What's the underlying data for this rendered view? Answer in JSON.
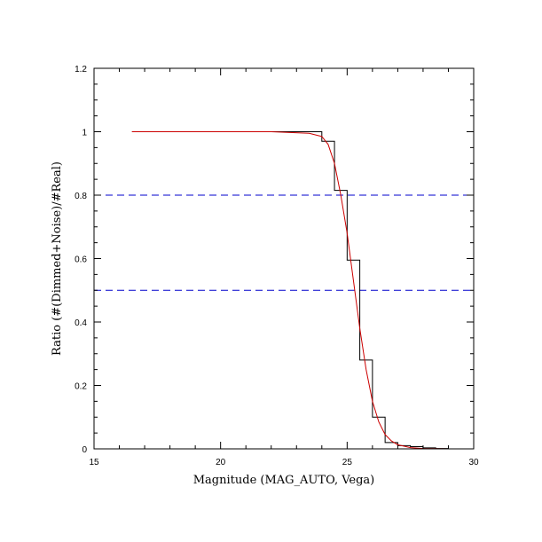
{
  "chart_data": {
    "type": "line",
    "title": "",
    "xlabel": "Magnitude (MAG_AUTO, Vega)",
    "ylabel": "Ratio (#(Dimmed+Noise)/#Real)",
    "xlim": [
      15,
      30
    ],
    "ylim": [
      0,
      1.2
    ],
    "x_ticks": [
      15,
      20,
      25,
      30
    ],
    "y_ticks": [
      0,
      0.2,
      0.4,
      0.6,
      0.8,
      1,
      1.2
    ],
    "x_tick_labels": [
      "15",
      "20",
      "25",
      "30"
    ],
    "y_tick_labels": [
      "0",
      "0.2",
      "0.4",
      "0.6",
      "0.8",
      "1",
      "1.2"
    ],
    "x_minor_step": 1,
    "y_minor_step": 0.05,
    "grid": false,
    "reference_lines": [
      {
        "y": 0.8,
        "color": "#0000cc",
        "style": "dashed"
      },
      {
        "y": 0.5,
        "color": "#0000cc",
        "style": "dashed"
      }
    ],
    "series": [
      {
        "kind": "step",
        "color": "#000000",
        "x": [
          16.5,
          24.0,
          24.0,
          24.5,
          24.5,
          25.0,
          25.0,
          25.5,
          25.5,
          26.0,
          26.0,
          26.5,
          26.5,
          27.0,
          27.0,
          27.5,
          27.5,
          28.0,
          28.0,
          28.5,
          28.5,
          29.0,
          29.0,
          29.5,
          29.5,
          30.0
        ],
        "y": [
          1.0,
          1.0,
          0.97,
          0.97,
          0.815,
          0.815,
          0.595,
          0.595,
          0.28,
          0.28,
          0.1,
          0.1,
          0.02,
          0.02,
          0.01,
          0.01,
          0.007,
          0.007,
          0.003,
          0.003,
          0.001,
          0.001,
          0.0,
          0.0,
          0.0,
          0.0
        ]
      },
      {
        "kind": "fit",
        "color": "#cc0000",
        "x": [
          16.5,
          18.0,
          20.0,
          22.0,
          23.5,
          24.0,
          24.25,
          24.5,
          24.75,
          25.0,
          25.25,
          25.5,
          25.75,
          26.0,
          26.25,
          26.5,
          26.75,
          27.0,
          27.5,
          28.0,
          29.0,
          30.0
        ],
        "y": [
          1.0,
          1.0,
          1.0,
          1.0,
          0.995,
          0.985,
          0.96,
          0.9,
          0.8,
          0.68,
          0.53,
          0.38,
          0.25,
          0.15,
          0.085,
          0.045,
          0.025,
          0.013,
          0.004,
          0.001,
          0.0,
          0.0
        ]
      }
    ]
  }
}
